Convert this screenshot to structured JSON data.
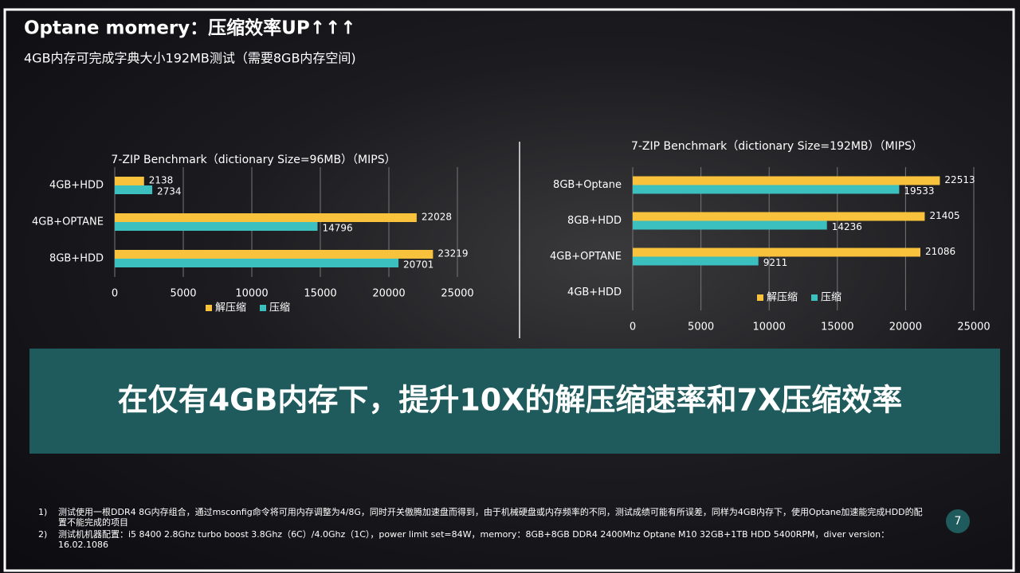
{
  "slide": {
    "title": "Optane momery：压缩效率UP↑↑↑",
    "subtitle": "4GB内存可完成字典大小192MB测试（需要8GB内存空间)",
    "banner": "在仅有4GB内存下，提升10X的解压缩速率和7X压缩效率",
    "footnotes": [
      {
        "num": "1)",
        "text": "测试使用一根DDR4 8G内存组合，通过msconfig命令将可用内存调整为4/8G，同时开关傲腾加速盘而得到，由于机械硬盘或内存频率的不同，测试成绩可能有所误差，同样为4GB内存下，使用Optane加速能完成HDD的配置不能完成的项目"
      },
      {
        "num": "2)",
        "text": "测试机机器配置：i5 8400 2.8Ghz turbo boost 3.8Ghz（6C）/4.0Ghz（1C），power limit set=84W，memory：8GB+8GB DDR4 2400Mhz Optane M10 32GB+1TB HDD 5400RPM，diver version：16.02.1086"
      }
    ],
    "page": "7"
  },
  "chart_data": [
    {
      "type": "bar",
      "orientation": "horizontal",
      "title": "7-ZIP Benchmark（dictionary Size=96MB）（MIPS）",
      "categories": [
        "4GB+HDD",
        "4GB+OPTANE",
        "8GB+HDD"
      ],
      "series": [
        {
          "name": "解压缩",
          "color": "#f9c23c",
          "values": [
            2138,
            22028,
            23219
          ]
        },
        {
          "name": "压缩",
          "color": "#3bbfbf",
          "values": [
            2734,
            14796,
            20701
          ]
        }
      ],
      "xlim": [
        0,
        25000
      ],
      "xticks": [
        0,
        5000,
        10000,
        15000,
        20000,
        25000
      ],
      "grid": true,
      "legend": "bottom"
    },
    {
      "type": "bar",
      "orientation": "horizontal",
      "title": "7-ZIP Benchmark（dictionary Size=192MB）（MIPS）",
      "categories": [
        "8GB+Optane",
        "8GB+HDD",
        "4GB+OPTANE",
        "4GB+HDD"
      ],
      "series": [
        {
          "name": "解压缩",
          "color": "#f9c23c",
          "values": [
            22513,
            21405,
            21086,
            null
          ]
        },
        {
          "name": "压缩",
          "color": "#3bbfbf",
          "values": [
            19533,
            14236,
            9211,
            null
          ]
        }
      ],
      "xlim": [
        0,
        25000
      ],
      "xticks": [
        0,
        5000,
        10000,
        15000,
        20000,
        25000
      ],
      "grid": true,
      "legend": "bottom"
    }
  ]
}
